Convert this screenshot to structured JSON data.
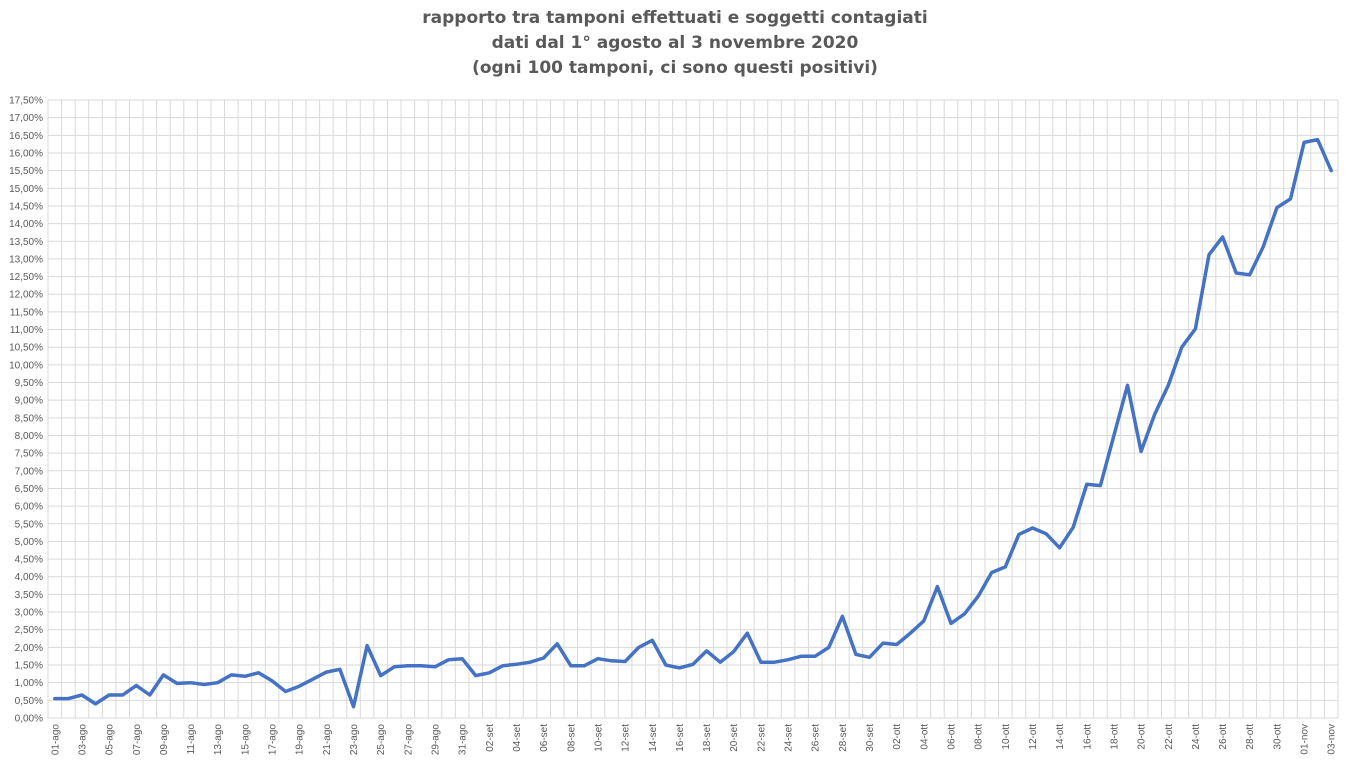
{
  "chart_data": {
    "type": "line",
    "title": [
      "rapporto tra tamponi effettuati e soggetti contagiati",
      "dati dal 1° agosto al 3 novembre 2020",
      "(ogni 100 tamponi, ci sono questi positivi)"
    ],
    "xlabel": "",
    "ylabel": "",
    "ylim": [
      0,
      17.5
    ],
    "y_ticks": [
      "0,00%",
      "0,50%",
      "1,00%",
      "1,50%",
      "2,00%",
      "2,50%",
      "3,00%",
      "3,50%",
      "4,00%",
      "4,50%",
      "5,00%",
      "5,50%",
      "6,00%",
      "6,50%",
      "7,00%",
      "7,50%",
      "8,00%",
      "8,50%",
      "9,00%",
      "9,50%",
      "10,00%",
      "10,50%",
      "11,00%",
      "11,50%",
      "12,00%",
      "12,50%",
      "13,00%",
      "13,50%",
      "14,00%",
      "14,50%",
      "15,00%",
      "15,50%",
      "16,00%",
      "16,50%",
      "17,00%",
      "17,50%"
    ],
    "x_tick_labels": [
      "01-ago",
      "03-ago",
      "05-ago",
      "07-ago",
      "09-ago",
      "11-ago",
      "13-ago",
      "15-ago",
      "17-ago",
      "19-ago",
      "21-ago",
      "23-ago",
      "25-ago",
      "27-ago",
      "29-ago",
      "31-ago",
      "02-set",
      "04-set",
      "06-set",
      "08-set",
      "10-set",
      "12-set",
      "14-set",
      "16-set",
      "18-set",
      "20-set",
      "22-set",
      "24-set",
      "26-set",
      "28-set",
      "30-set",
      "02-ott",
      "04-ott",
      "06-ott",
      "08-ott",
      "10-ott",
      "12-ott",
      "14-ott",
      "16-ott",
      "18-ott",
      "20-ott",
      "22-ott",
      "24-ott",
      "26-ott",
      "28-ott",
      "30-ott",
      "01-nov",
      "03-nov"
    ],
    "grid": true,
    "legend": "none",
    "line_color": "#4472C4",
    "series": [
      {
        "values": [
          0.55,
          0.55,
          0.65,
          0.4,
          0.65,
          0.65,
          0.92,
          0.65,
          1.22,
          0.98,
          1.0,
          0.95,
          1.0,
          1.22,
          1.18,
          1.28,
          1.05,
          0.75,
          0.9,
          1.1,
          1.3,
          1.38,
          0.32,
          2.05,
          1.2,
          1.45,
          1.48,
          1.48,
          1.45,
          1.65,
          1.68,
          1.2,
          1.28,
          1.48,
          1.52,
          1.58,
          1.7,
          2.1,
          1.48,
          1.48,
          1.68,
          1.62,
          1.6,
          2.0,
          2.2,
          1.5,
          1.42,
          1.52,
          1.9,
          1.58,
          1.88,
          2.4,
          1.58,
          1.58,
          1.65,
          1.75,
          1.75,
          2.0,
          2.88,
          1.8,
          1.72,
          2.12,
          2.08,
          2.4,
          2.75,
          3.72,
          2.68,
          2.95,
          3.45,
          4.12,
          4.28,
          5.2,
          5.38,
          5.22,
          4.82,
          5.4,
          6.62,
          6.58,
          8.0,
          9.42,
          7.55,
          8.6,
          9.42,
          10.5,
          11.02,
          13.12,
          13.62,
          12.6,
          12.55,
          13.35,
          14.45,
          14.7,
          16.3,
          16.38,
          15.5
        ]
      }
    ]
  }
}
